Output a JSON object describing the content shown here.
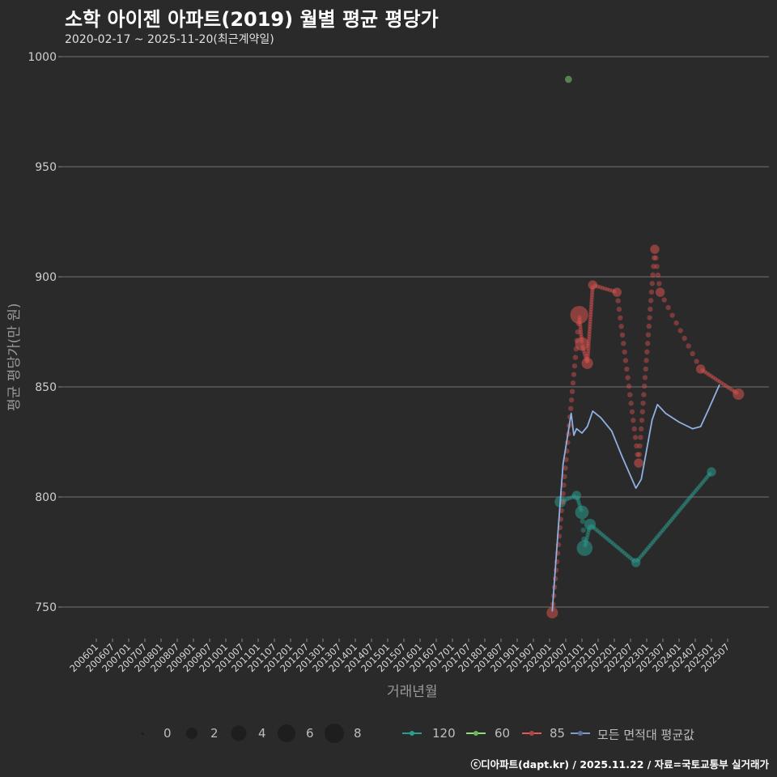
{
  "header": {
    "title": "소학 아이젠 아파트(2019) 월별 평균 평당가",
    "subtitle": "2020-02-17 ~ 2025-11-20(최근계약일)"
  },
  "axes": {
    "ylabel": "평균 평당가(만 원)",
    "xlabel": "거래년월",
    "yticks": [
      "1000",
      "950",
      "900",
      "850",
      "800",
      "750"
    ],
    "xticks": [
      "200601",
      "200607",
      "200701",
      "200707",
      "200801",
      "200807",
      "200901",
      "200907",
      "201001",
      "201007",
      "201101",
      "201107",
      "201201",
      "201207",
      "201301",
      "201307",
      "201401",
      "201407",
      "201501",
      "201507",
      "201601",
      "201607",
      "201701",
      "201707",
      "201801",
      "201807",
      "201901",
      "201907",
      "202001",
      "202007",
      "202101",
      "202107",
      "202201",
      "202207",
      "202301",
      "202307",
      "202401",
      "202407",
      "202501",
      "202507"
    ]
  },
  "legend": {
    "size_title": "",
    "sizes": [
      "0",
      "2",
      "4",
      "6",
      "8"
    ],
    "series": [
      {
        "label": "120",
        "color": "#2a9d8f"
      },
      {
        "label": "60",
        "color": "#8fdc7a"
      },
      {
        "label": "85",
        "color": "#e05a5a"
      },
      {
        "label": "모든 면적대 평균값",
        "color": "#7f9ccf"
      }
    ]
  },
  "caption": "ⓒ디아파트(dapt.kr) / 2025.11.22 / 자료=국토교통부 실거래가",
  "colors": {
    "background": "#2a2a2b",
    "grid": "#5a5a5a",
    "s120": "#2a9d8f",
    "s60": "#7bc96f",
    "s85": "#d9534f",
    "avg": "#8fb0e0"
  },
  "chart_data": {
    "type": "scatter",
    "title": "소학 아이젠 아파트(2019) 월별 평균 평당가",
    "subtitle": "2020-02-17 ~ 2025-11-20(최근계약일)",
    "xlabel": "거래년월",
    "ylabel": "평균 평당가(만 원)",
    "ylim": [
      735,
      1005
    ],
    "xrange": [
      "200601",
      "202511"
    ],
    "grid": true,
    "legend_position": "bottom",
    "series": [
      {
        "name": "120",
        "type": "scatter+interpolated-line",
        "points": [
          {
            "x": "202005",
            "y": 797.8,
            "n": 3
          },
          {
            "x": "202011",
            "y": 800.7,
            "n": 2
          },
          {
            "x": "202101",
            "y": 793.0,
            "n": 4
          },
          {
            "x": "202102",
            "y": 776.8,
            "n": 5
          },
          {
            "x": "202104",
            "y": 787.5,
            "n": 3
          },
          {
            "x": "202209",
            "y": 770.2,
            "n": 2
          },
          {
            "x": "202501",
            "y": 811.4,
            "n": 2
          }
        ]
      },
      {
        "name": "60",
        "type": "scatter",
        "points": [
          {
            "x": "202008",
            "y": 989.7,
            "n": 1
          }
        ]
      },
      {
        "name": "85",
        "type": "scatter+interpolated-line",
        "points": [
          {
            "x": "202002",
            "y": 747.4,
            "n": 3
          },
          {
            "x": "202012",
            "y": 882.7,
            "n": 6
          },
          {
            "x": "202101",
            "y": 869.5,
            "n": 4
          },
          {
            "x": "202103",
            "y": 860.7,
            "n": 3
          },
          {
            "x": "202105",
            "y": 896.3,
            "n": 2
          },
          {
            "x": "202114",
            "y": 893.0,
            "n": 2
          },
          {
            "x": "202210",
            "y": 815.4,
            "n": 2
          },
          {
            "x": "202304",
            "y": 912.5,
            "n": 2
          },
          {
            "x": "202306",
            "y": 893.0,
            "n": 2
          },
          {
            "x": "202409",
            "y": 858.1,
            "n": 2
          },
          {
            "x": "202511",
            "y": 846.7,
            "n": 3
          }
        ]
      },
      {
        "name": "모든 면적대 평균값",
        "type": "line",
        "points": [
          {
            "x": "202002",
            "y": 748
          },
          {
            "x": "202004",
            "y": 782
          },
          {
            "x": "202006",
            "y": 815
          },
          {
            "x": "202008",
            "y": 830
          },
          {
            "x": "202009",
            "y": 838
          },
          {
            "x": "202010",
            "y": 828
          },
          {
            "x": "202011",
            "y": 831
          },
          {
            "x": "202101",
            "y": 829
          },
          {
            "x": "202103",
            "y": 832
          },
          {
            "x": "202105",
            "y": 839
          },
          {
            "x": "202108",
            "y": 836
          },
          {
            "x": "202112",
            "y": 830
          },
          {
            "x": "202204",
            "y": 818
          },
          {
            "x": "202209",
            "y": 804
          },
          {
            "x": "202211",
            "y": 808
          },
          {
            "x": "202303",
            "y": 835
          },
          {
            "x": "202305",
            "y": 842
          },
          {
            "x": "202308",
            "y": 838
          },
          {
            "x": "202401",
            "y": 834
          },
          {
            "x": "202406",
            "y": 831
          },
          {
            "x": "202409",
            "y": 832
          },
          {
            "x": "202412",
            "y": 840
          },
          {
            "x": "202504",
            "y": 851
          }
        ]
      }
    ]
  }
}
